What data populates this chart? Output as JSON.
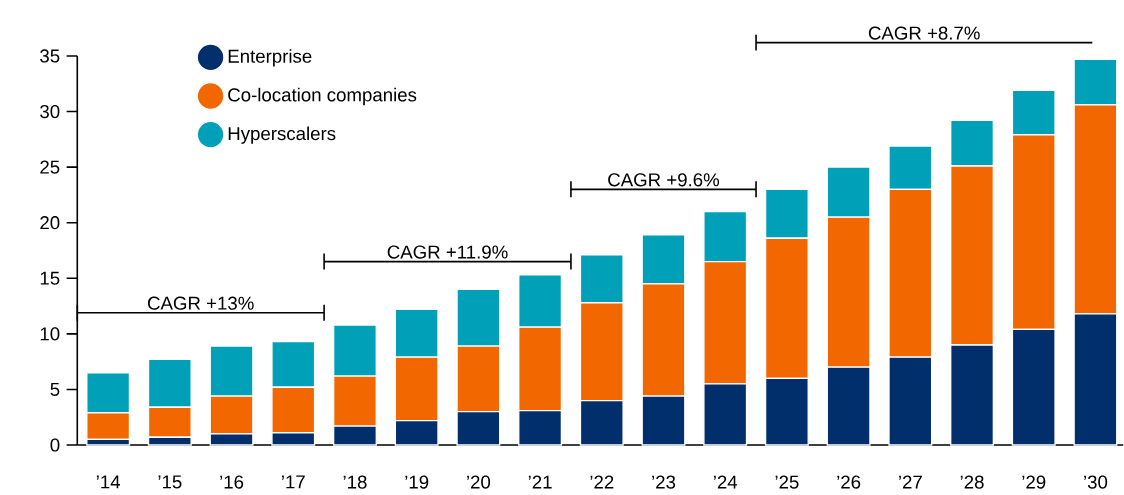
{
  "chart_data": {
    "type": "bar",
    "stacked": true,
    "categories": [
      "’14",
      "’15",
      "’16",
      "’17",
      "’18",
      "’19",
      "’20",
      "’21",
      "’22",
      "’23",
      "’24",
      "’25",
      "’26",
      "’27",
      "’28",
      "’29",
      "’30"
    ],
    "series": [
      {
        "name": "Enterprise",
        "color": "#002f6c",
        "values": [
          0.5,
          0.7,
          1.0,
          1.1,
          1.7,
          2.2,
          3.0,
          3.1,
          4.0,
          4.4,
          5.5,
          6.0,
          7.0,
          7.9,
          9.0,
          10.4,
          11.8
        ]
      },
      {
        "name": "Co-location companies",
        "color": "#f26700",
        "values": [
          2.4,
          2.7,
          3.4,
          4.1,
          4.5,
          5.7,
          5.9,
          7.5,
          8.8,
          10.1,
          11.0,
          12.6,
          13.5,
          15.1,
          16.1,
          17.5,
          18.8
        ]
      },
      {
        "name": "Hyperscalers",
        "color": "#00a0b8",
        "values": [
          3.6,
          4.3,
          4.5,
          4.1,
          4.6,
          4.3,
          5.1,
          4.7,
          4.3,
          4.4,
          4.5,
          4.4,
          4.5,
          3.9,
          4.1,
          4.0,
          4.1
        ]
      }
    ],
    "ylim": [
      0,
      35
    ],
    "yticks": [
      0,
      5,
      10,
      15,
      20,
      25,
      30,
      35
    ],
    "legend": "top left",
    "marker": "circle",
    "annotations": [
      "CAGR +13%",
      "CAGR +11.9%",
      "CAGR +9.6%",
      "CAGR +8.7%"
    ]
  }
}
